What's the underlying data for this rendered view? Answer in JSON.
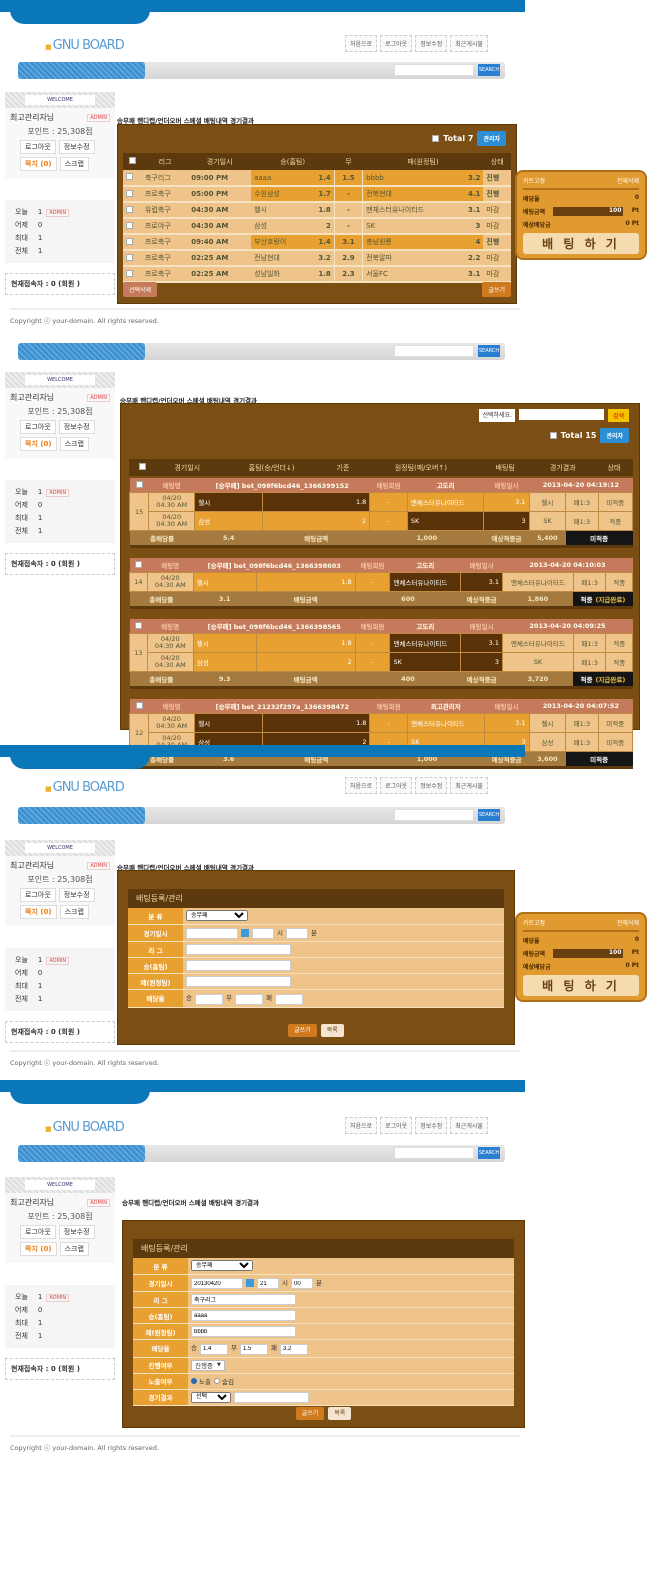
{
  "site": {
    "logo": "GNU BOARD",
    "nav": [
      "처음으로",
      "로그아웃",
      "정보수정",
      "최근게시물"
    ],
    "search_button": "SEARCH",
    "welcome": "WELCOME",
    "user": "최고관리자님",
    "admin_badge": "ADMIN",
    "points": "포인트 : 25,308점",
    "logout": "로그아웃",
    "edit": "정보수정",
    "memo": "쪽지 (0)",
    "scrap": "스크랩",
    "stats": [
      {
        "label": "오늘",
        "value": "1",
        "badge": "ADMIN"
      },
      {
        "label": "어제",
        "value": "0"
      },
      {
        "label": "최대",
        "value": "1"
      },
      {
        "label": "전체",
        "value": "1"
      }
    ],
    "online": "현재접속자 : 0 (회원 )",
    "copyright": "Copyright ⓒ your-domain. All rights reserved.",
    "page_title": "승무패 핸디캡/언더오버 스페셜 배팅내역 경기결과"
  },
  "list": {
    "total": "Total 7",
    "admin_button": "관리자",
    "headers": [
      "리그",
      "경기일시",
      "승(홈팀)",
      "무",
      "패(원정팀)",
      "상태"
    ],
    "rows": [
      {
        "league": "축구리그",
        "time": "09:00 PM",
        "home": "aaaa",
        "home_odds": "1.4",
        "draw": "1.5",
        "away": "bbbb",
        "away_odds": "3.2",
        "status": "진행",
        "active": true
      },
      {
        "league": "프로축구",
        "time": "05:00 PM",
        "home": "수원삼성",
        "home_odds": "1.7",
        "draw": "-",
        "away": "전북현대",
        "away_odds": "4.1",
        "status": "진행",
        "active": true
      },
      {
        "league": "유럽축구",
        "time": "04:30 AM",
        "home": "첼시",
        "home_odds": "1.8",
        "draw": "-",
        "away": "맨체스터유나이티드",
        "away_odds": "3.1",
        "status": "마감",
        "active": false
      },
      {
        "league": "프로야구",
        "time": "04:30 AM",
        "home": "삼성",
        "home_odds": "2",
        "draw": "-",
        "away": "SK",
        "away_odds": "3",
        "status": "마감",
        "active": false
      },
      {
        "league": "프로축구",
        "time": "09:40 AM",
        "home": "부산호랑이",
        "home_odds": "1.4",
        "draw": "3.1",
        "away": "충남원룡",
        "away_odds": "4",
        "status": "진행",
        "active": true
      },
      {
        "league": "프로축구",
        "time": "02:25 AM",
        "home": "전남현대",
        "home_odds": "3.2",
        "draw": "2.9",
        "away": "전북알파",
        "away_odds": "2.2",
        "status": "마감",
        "active": false
      },
      {
        "league": "프로축구",
        "time": "02:25 AM",
        "home": "성남일화",
        "home_odds": "1.8",
        "draw": "2.3",
        "away": "서울FC",
        "away_odds": "3.1",
        "status": "마감",
        "active": false
      }
    ],
    "delete_button": "선택삭제",
    "write_button": "글쓰기"
  },
  "slip": {
    "cart_fix": "카트고정",
    "delete_all": "전체삭제",
    "odds_label": "배당율",
    "odds": "0",
    "amount_label": "배팅금액",
    "amount": "100",
    "unit": "Pt",
    "expected_label": "예상배당금",
    "expected": "0 Pt",
    "bet_button": "배 팅 하 기"
  },
  "history": {
    "select": "선택하세요.",
    "search_button": "검색",
    "total": "Total 15",
    "admin_button": "관리자",
    "headers": [
      "경기일시",
      "홈팀(승/언더↓)",
      "기준",
      "원정팀(패/오버↑)",
      "배팅팀",
      "경기결과",
      "상태"
    ],
    "labels": {
      "name": "배팅명",
      "member": "배팅회원",
      "date": "배팅일시",
      "total_odds": "총배당률",
      "amount": "배팅금액",
      "expected": "예상적중금"
    },
    "bets": [
      {
        "no": "15",
        "name": "[승무패] bet_098f6bcd46_1366399152",
        "member": "고도리",
        "date": "2013-04-20 04:19:12",
        "games": [
          {
            "time": "04/20 04:30 AM",
            "home": "첼시",
            "home_odds": "1.8",
            "base": "-",
            "away": "맨체스터유나이티드",
            "away_odds": "3.1",
            "pick": "첼시",
            "pick_side": "home",
            "result": "패1:3",
            "status": "미적중"
          },
          {
            "time": "04/20 04:30 AM",
            "home": "삼성",
            "home_odds": "2",
            "base": "-",
            "away": "SK",
            "away_odds": "3",
            "pick": "SK",
            "pick_side": "away",
            "result": "패1:3",
            "status": "적중"
          }
        ],
        "total_odds": "5.4",
        "amount": "1,000",
        "expected": "5,400",
        "status": "미적중",
        "paid": ""
      },
      {
        "no": "14",
        "name": "[승무패] bet_098f6bcd46_1366398603",
        "member": "고도리",
        "date": "2013-04-20 04:10:03",
        "games": [
          {
            "time": "04/20 04:30 AM",
            "home": "첼시",
            "home_odds": "1.8",
            "base": "-",
            "away": "맨체스터유나이티드",
            "away_odds": "3.1",
            "pick": "맨체스터유나이티드",
            "pick_side": "away",
            "result": "패1:3",
            "status": "적중"
          }
        ],
        "total_odds": "3.1",
        "amount": "600",
        "expected": "1,860",
        "status": "적중",
        "paid": "(지급완료)"
      },
      {
        "no": "13",
        "name": "[승무패] bet_098f6bcd46_1366398565",
        "member": "고도리",
        "date": "2013-04-20 04:09:25",
        "games": [
          {
            "time": "04/20 04:30 AM",
            "home": "첼시",
            "home_odds": "1.8",
            "base": "-",
            "away": "맨체스터유나이티드",
            "away_odds": "3.1",
            "pick": "맨체스터유나이티드",
            "pick_side": "away",
            "result": "패1:3",
            "status": "적중"
          },
          {
            "time": "04/20 04:30 AM",
            "home": "삼성",
            "home_odds": "2",
            "base": "-",
            "away": "SK",
            "away_odds": "3",
            "pick": "SK",
            "pick_side": "away",
            "result": "패1:3",
            "status": "적중"
          }
        ],
        "total_odds": "9.3",
        "amount": "400",
        "expected": "3,720",
        "status": "적중",
        "paid": "(지급완료)"
      },
      {
        "no": "12",
        "name": "[승무패] bet_21232f297a_1366398472",
        "member": "최고관리자",
        "date": "2013-04-20 04:07:52",
        "games": [
          {
            "time": "04/20 04:30 AM",
            "home": "첼시",
            "home_odds": "1.8",
            "base": "-",
            "away": "맨체스터유나이티드",
            "away_odds": "3.1",
            "pick": "첼시",
            "pick_side": "home",
            "result": "패1:3",
            "status": "미적중"
          },
          {
            "time": "04/20 04:30 AM",
            "home": "삼성",
            "home_odds": "2",
            "base": "-",
            "away": "SK",
            "away_odds": "3",
            "pick": "삼성",
            "pick_side": "home",
            "result": "패1:3",
            "status": "미적중"
          }
        ],
        "total_odds": "3.6",
        "amount": "1,000",
        "expected": "3,600",
        "status": "미적중",
        "paid": ""
      }
    ]
  },
  "form": {
    "title": "배팅등록/관리",
    "labels": {
      "category": "분 류",
      "datetime": "경기일시",
      "league": "리 그",
      "home": "승(홈팀)",
      "away": "패(원정팀)",
      "odds": "배당율",
      "progress": "진행여부",
      "visible": "노출여부",
      "result": "경기결과"
    },
    "hour": "시",
    "minute": "분",
    "win": "승",
    "draw": "무",
    "lose": "패",
    "write_button": "글쓰기",
    "list_button": "목록",
    "empty": {
      "category": "승무패"
    },
    "filled": {
      "category": "승무패",
      "date": "20130420",
      "hour": "21",
      "minute": "00",
      "league": "축구리그",
      "home": "aaaa",
      "away": "bbbb",
      "win": "1.4",
      "draw": "1.5",
      "lose": "3.2",
      "progress": "진행중",
      "visible_on": "노출",
      "visible_off": "숨김",
      "result": "선택"
    }
  },
  "colors": {
    "brown": "#7b4f14",
    "orange": "#e8a030",
    "tan": "#eec48a",
    "bet_header": "#c67a5c",
    "brand_blue": "#0a78b8"
  }
}
